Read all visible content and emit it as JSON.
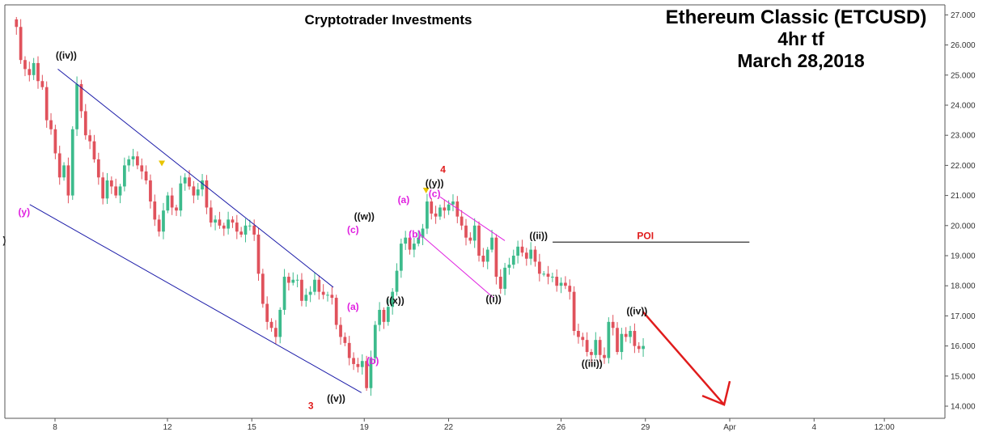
{
  "chart_data": {
    "type": "candlestick",
    "title": "Ethereum Classic (ETCUSD)",
    "subtitle": [
      "4hr tf",
      "March 28,2018"
    ],
    "watermark": "Cryptotrader Investments",
    "y_ticks": [
      "14.000",
      "15.000",
      "16.000",
      "17.000",
      "18.000",
      "19.000",
      "20.000",
      "21.000",
      "22.000",
      "23.000",
      "24.000",
      "25.000",
      "26.000",
      "27.000"
    ],
    "y_tick_values": [
      14,
      15,
      16,
      17,
      18,
      19,
      20,
      21,
      22,
      23,
      24,
      25,
      26,
      27
    ],
    "ylim": [
      13.7,
      27.35
    ],
    "x_ticks": [
      "8",
      "12",
      "15",
      "19",
      "22",
      "26",
      "29",
      "Apr",
      "4",
      "12:00"
    ],
    "x_tick_days": [
      8,
      12,
      15,
      19,
      22,
      26,
      29,
      32,
      35,
      37.5
    ],
    "xlim": [
      6.1,
      39.9
    ],
    "colors": {
      "up": "#3dbb8c",
      "down": "#e0525c",
      "channel": "#1a1aa8",
      "wave_red": "#e01c1c",
      "wave_magenta": "#e020e0",
      "poi_line": "#333333",
      "arrow": "#e01c1c",
      "marker": "#e8c400"
    },
    "closes": [
      26.6,
      25.5,
      25.2,
      25.0,
      25.4,
      24.8,
      24.6,
      23.5,
      23.2,
      22.4,
      21.6,
      22.0,
      21.0,
      23.2,
      24.7,
      23.8,
      23.0,
      22.8,
      22.2,
      21.6,
      20.9,
      21.5,
      21.3,
      21.0,
      21.3,
      22.0,
      22.2,
      22.3,
      22.0,
      21.8,
      21.5,
      20.8,
      20.2,
      19.8,
      20.5,
      21.0,
      20.6,
      20.5,
      21.4,
      21.6,
      21.3,
      21.0,
      21.2,
      21.5,
      20.6,
      20.1,
      20.2,
      20.0,
      19.9,
      20.2,
      20.1,
      19.8,
      19.7,
      20.0,
      20.0,
      19.7,
      18.4,
      17.4,
      16.8,
      16.6,
      16.3,
      17.2,
      18.3,
      18.1,
      18.2,
      18.2,
      17.5,
      17.7,
      17.8,
      18.2,
      17.8,
      17.7,
      17.7,
      17.6,
      16.7,
      16.3,
      16.1,
      15.6,
      15.4,
      15.3,
      15.5,
      14.6,
      15.6,
      16.7,
      17.2,
      16.8,
      17.3,
      17.8,
      18.5,
      19.4,
      19.6,
      19.2,
      19.4,
      19.6,
      19.9,
      20.8,
      20.4,
      20.3,
      20.6,
      20.5,
      20.7,
      20.8,
      20.3,
      20.0,
      19.6,
      19.5,
      20.0,
      19.0,
      18.8,
      19.2,
      19.6,
      18.3,
      17.9,
      18.6,
      18.7,
      19.0,
      19.3,
      19.1,
      18.9,
      19.2,
      18.8,
      18.4,
      18.4,
      18.3,
      18.3,
      18.0,
      18.1,
      18.0,
      17.8,
      16.5,
      16.3,
      16.2,
      15.8,
      15.7,
      16.2,
      15.7,
      15.6,
      16.8,
      16.6,
      15.8,
      16.4,
      16.3,
      16.5,
      16.0,
      15.9,
      16.0
    ],
    "wave_labels": [
      {
        "text": "((iv))",
        "day": 8.4,
        "price": 25.55,
        "style": "black"
      },
      {
        "text": "(y)",
        "day": 6.9,
        "price": 20.35,
        "style": "magenta"
      },
      {
        "text": ")",
        "day": 6.2,
        "price": 19.4,
        "style": "black"
      },
      {
        "text": "3",
        "day": 17.1,
        "price": 13.9,
        "style": "red_big"
      },
      {
        "text": "((v))",
        "day": 18.0,
        "price": 14.15,
        "style": "black"
      },
      {
        "text": "((w))",
        "day": 19.0,
        "price": 20.2,
        "style": "black"
      },
      {
        "text": "(c)",
        "day": 18.6,
        "price": 19.75,
        "style": "magenta"
      },
      {
        "text": "(a)",
        "day": 18.6,
        "price": 17.2,
        "style": "magenta"
      },
      {
        "text": "(b)",
        "day": 19.3,
        "price": 15.4,
        "style": "magenta"
      },
      {
        "text": "((x))",
        "day": 20.1,
        "price": 17.4,
        "style": "black"
      },
      {
        "text": "(a)",
        "day": 20.4,
        "price": 20.75,
        "style": "magenta"
      },
      {
        "text": "(b)",
        "day": 20.8,
        "price": 19.6,
        "style": "magenta"
      },
      {
        "text": "(c)",
        "day": 21.5,
        "price": 20.95,
        "style": "magenta"
      },
      {
        "text": "((y))",
        "day": 21.5,
        "price": 21.3,
        "style": "black"
      },
      {
        "text": "4",
        "day": 21.8,
        "price": 21.75,
        "style": "red_big"
      },
      {
        "text": "((i))",
        "day": 23.6,
        "price": 17.45,
        "style": "black"
      },
      {
        "text": "((ii))",
        "day": 25.2,
        "price": 19.55,
        "style": "black"
      },
      {
        "text": "POI",
        "day": 29.0,
        "price": 19.55,
        "style": "red_poi"
      },
      {
        "text": "((iii))",
        "day": 27.1,
        "price": 15.3,
        "style": "black"
      },
      {
        "text": "((iv))",
        "day": 28.7,
        "price": 17.05,
        "style": "black"
      }
    ],
    "trendlines": [
      {
        "kind": "channel",
        "from": [
          8.1,
          25.2
        ],
        "to": [
          17.9,
          17.95
        ]
      },
      {
        "kind": "channel",
        "from": [
          7.1,
          20.7
        ],
        "to": [
          18.9,
          14.45
        ]
      },
      {
        "kind": "corrective",
        "from": [
          21.7,
          20.95
        ],
        "to": [
          24.0,
          19.5
        ]
      },
      {
        "kind": "corrective",
        "from": [
          21.0,
          19.7
        ],
        "to": [
          23.6,
          17.6
        ]
      },
      {
        "kind": "poi",
        "from": [
          25.7,
          19.45
        ],
        "to": [
          32.7,
          19.45
        ]
      }
    ],
    "arrow": {
      "from": [
        28.9,
        17.15
      ],
      "to": [
        31.8,
        14.05
      ]
    },
    "markers": [
      {
        "day": 11.8,
        "price": 22.05
      },
      {
        "day": 21.2,
        "price": 21.15
      }
    ]
  }
}
